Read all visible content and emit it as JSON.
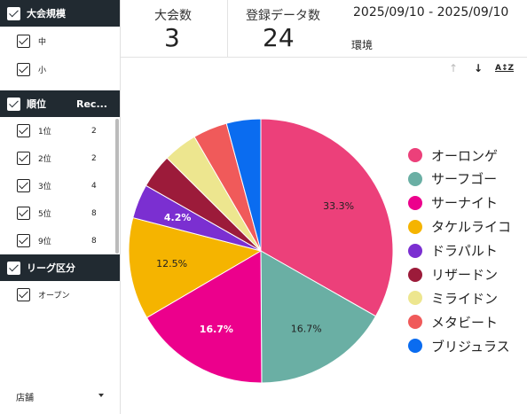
{
  "sidebar": {
    "size_filter": {
      "title": "大会規模",
      "items": [
        {
          "label": "中"
        },
        {
          "label": "小"
        }
      ]
    },
    "rank_filter": {
      "title": "順位",
      "title2": "Rec...",
      "items": [
        {
          "label": "1位",
          "count": "2"
        },
        {
          "label": "2位",
          "count": "2"
        },
        {
          "label": "3位",
          "count": "4"
        },
        {
          "label": "5位",
          "count": "8"
        },
        {
          "label": "9位",
          "count": "8"
        }
      ]
    },
    "league_filter": {
      "title": "リーグ区分",
      "items": [
        {
          "label": "オープン"
        }
      ]
    },
    "store_dropdown": "店舗"
  },
  "kpis": {
    "tournaments": {
      "label": "大会数",
      "value": "3"
    },
    "records": {
      "label": "登録データ数",
      "value": "24"
    }
  },
  "date_range": "2025/09/10 - 2025/09/10",
  "environment_label": "環境",
  "toolbar": {
    "up_icon": "arrow-up-icon",
    "down_icon": "arrow-down-icon",
    "az_icon": "sort-az-icon"
  },
  "chart_data": {
    "type": "pie",
    "title": "",
    "series": [
      {
        "name": "オーロンゲ",
        "value": 33.3,
        "label": "33.3%",
        "color": "#ec407a"
      },
      {
        "name": "サーフゴー",
        "value": 16.7,
        "label": "16.7%",
        "color": "#6aafa4"
      },
      {
        "name": "サーナイト",
        "value": 16.7,
        "label": "16.7%",
        "color": "#ec008c"
      },
      {
        "name": "タケルライコ",
        "value": 12.5,
        "label": "12.5%",
        "color": "#f5b400"
      },
      {
        "name": "ドラパルト",
        "value": 4.2,
        "label": "4.2%",
        "color": "#7b2fd1"
      },
      {
        "name": "リザードン",
        "value": 4.2,
        "label": "",
        "color": "#9c1b3a"
      },
      {
        "name": "ミライドン",
        "value": 4.2,
        "label": "",
        "color": "#ede68f"
      },
      {
        "name": "メタビート",
        "value": 4.2,
        "label": "",
        "color": "#f05a5a"
      },
      {
        "name": "ブリジュラス",
        "value": 4.2,
        "label": "",
        "color": "#0a6cf0"
      }
    ],
    "legend_position": "right"
  }
}
